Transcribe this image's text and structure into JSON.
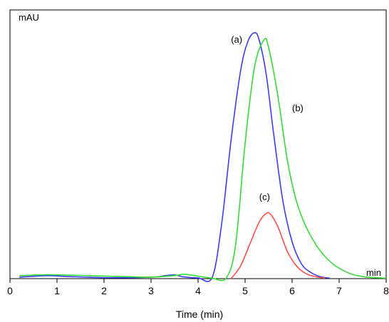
{
  "chart_data": {
    "type": "line",
    "xlabel": "Time (min)",
    "ylabel": "mAU",
    "x_unit_label": "min",
    "xlim": [
      0,
      8
    ],
    "ylim": [
      0,
      100
    ],
    "x_ticks": [
      "0",
      "1",
      "2",
      "3",
      "4",
      "5",
      "6",
      "7",
      "8"
    ],
    "grid": false,
    "series": [
      {
        "name": "(a)",
        "color": "#3b3bff",
        "x": [
          0.2,
          0.8,
          1.2,
          2.0,
          3.0,
          3.3,
          3.5,
          3.7,
          4.0,
          4.3,
          4.5,
          4.7,
          4.9,
          5.05,
          5.2,
          5.3,
          5.45,
          5.6,
          5.8,
          6.0,
          6.2,
          6.4,
          6.6,
          6.8
        ],
        "y": [
          0.6,
          1.2,
          0.9,
          0.4,
          0.6,
          1.2,
          1.5,
          0.7,
          0.3,
          0.5,
          22,
          56,
          84,
          96,
          100,
          97,
          83,
          60,
          32,
          15,
          6,
          2.5,
          0.8,
          0.2
        ]
      },
      {
        "name": "(b)",
        "color": "#33dd33",
        "x": [
          0.2,
          0.8,
          1.5,
          2.5,
          3.0,
          3.5,
          3.7,
          4.0,
          4.3,
          4.6,
          4.8,
          5.0,
          5.2,
          5.4,
          5.5,
          5.7,
          5.9,
          6.1,
          6.3,
          6.5,
          6.7,
          6.9,
          7.1,
          7.3,
          7.6,
          8.0
        ],
        "y": [
          1.2,
          1.6,
          1.3,
          0.8,
          0.6,
          1.2,
          1.8,
          1.0,
          0.2,
          0.3,
          14,
          55,
          86,
          97,
          94,
          74,
          48,
          31,
          21,
          14,
          9,
          5.5,
          3.2,
          1.6,
          0.6,
          0.2
        ]
      },
      {
        "name": "(c)",
        "color": "#ff4d4d",
        "x": [
          4.7,
          4.9,
          5.1,
          5.3,
          5.45,
          5.55,
          5.7,
          5.9,
          6.1,
          6.3,
          6.5,
          6.7
        ],
        "y": [
          0.0,
          5,
          14,
          23,
          26.5,
          26,
          21,
          11,
          5,
          2,
          0.8,
          0.2
        ]
      }
    ],
    "annotations": [
      {
        "text": "(a)",
        "x": 4.7,
        "y": 96
      },
      {
        "text": "(b)",
        "x": 6.0,
        "y": 68
      },
      {
        "text": "(c)",
        "x": 5.3,
        "y": 32
      }
    ]
  }
}
